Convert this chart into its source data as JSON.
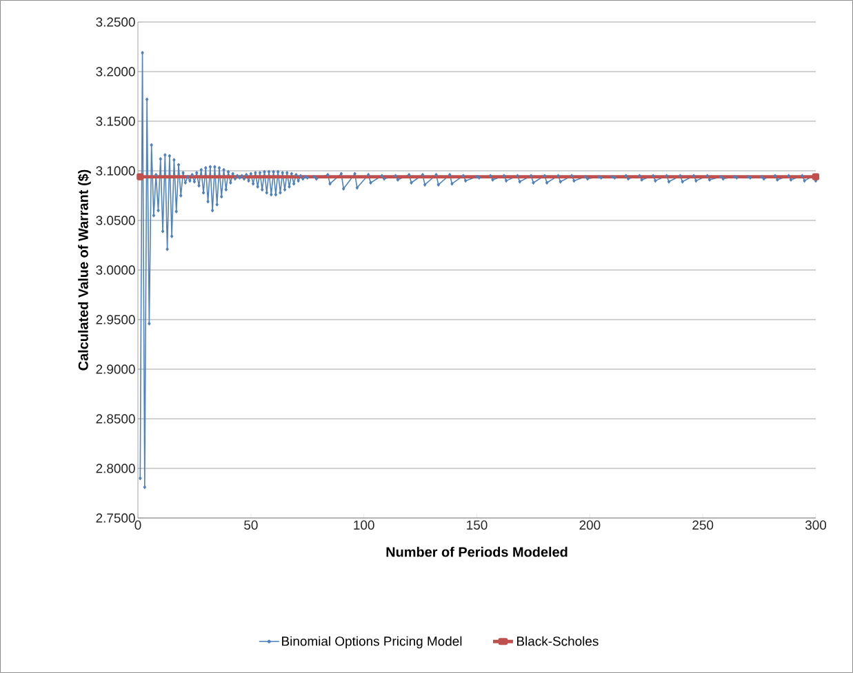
{
  "chart_data": {
    "type": "line",
    "xlabel": "Number of Periods Modeled",
    "ylabel": "Calculated Value of Warrant ($)",
    "xlim": [
      0,
      300
    ],
    "xticks": [
      0,
      50,
      100,
      150,
      200,
      250,
      300
    ],
    "ylim": [
      2.75,
      3.25
    ],
    "yticks": [
      {
        "value": 2.75,
        "label": "2.7500"
      },
      {
        "value": 2.8,
        "label": "2.8000"
      },
      {
        "value": 2.85,
        "label": "2.8500"
      },
      {
        "value": 2.9,
        "label": "2.9000"
      },
      {
        "value": 2.95,
        "label": "2.9500"
      },
      {
        "value": 3.0,
        "label": "3.0000"
      },
      {
        "value": 3.05,
        "label": "3.0500"
      },
      {
        "value": 3.1,
        "label": "3.1000"
      },
      {
        "value": 3.15,
        "label": "3.1500"
      },
      {
        "value": 3.2,
        "label": "3.2000"
      },
      {
        "value": 3.25,
        "label": "3.2500"
      }
    ],
    "grid": "y",
    "legend": "bottom",
    "series": [
      {
        "name": "Binomial Options Pricing Model",
        "color": "#4f81bd",
        "marker": "diamond",
        "x": [
          1,
          2,
          3,
          4,
          5,
          6,
          7,
          8,
          9,
          10,
          11,
          12,
          13,
          14,
          15,
          16,
          17,
          18,
          19,
          20,
          21,
          22,
          23,
          24,
          25,
          26,
          27,
          28,
          29,
          30,
          31,
          32,
          33,
          34,
          35,
          36,
          37,
          38,
          39,
          40,
          41,
          42,
          43,
          44,
          45,
          46,
          47,
          48,
          49,
          50,
          51,
          52,
          53,
          54,
          55,
          56,
          57,
          58,
          59,
          60,
          61,
          62,
          63,
          64,
          65,
          66,
          67,
          68,
          69,
          70,
          71,
          72,
          73,
          74,
          75,
          78,
          79,
          84,
          85,
          90,
          91,
          96,
          97,
          102,
          103,
          108,
          109,
          114,
          115,
          120,
          121,
          126,
          127,
          132,
          133,
          138,
          139,
          144,
          145,
          150,
          151,
          156,
          157,
          162,
          163,
          168,
          169,
          174,
          175,
          180,
          181,
          186,
          187,
          192,
          193,
          198,
          199,
          204,
          205,
          210,
          211,
          216,
          217,
          222,
          223,
          228,
          229,
          234,
          235,
          240,
          241,
          246,
          247,
          252,
          253,
          258,
          259,
          264,
          265,
          270,
          271,
          276,
          277,
          282,
          283,
          288,
          289,
          294,
          295,
          299,
          300
        ],
        "values": [
          2.79,
          3.219,
          2.781,
          3.172,
          2.946,
          3.126,
          3.055,
          3.096,
          3.06,
          3.112,
          3.039,
          3.116,
          3.021,
          3.115,
          3.034,
          3.111,
          3.059,
          3.106,
          3.075,
          3.098,
          3.088,
          3.094,
          3.09,
          3.096,
          3.089,
          3.098,
          3.085,
          3.101,
          3.078,
          3.103,
          3.069,
          3.104,
          3.06,
          3.104,
          3.066,
          3.103,
          3.074,
          3.101,
          3.081,
          3.099,
          3.088,
          3.097,
          3.092,
          3.095,
          3.093,
          3.095,
          3.092,
          3.096,
          3.09,
          3.097,
          3.087,
          3.098,
          3.084,
          3.098,
          3.081,
          3.099,
          3.078,
          3.099,
          3.076,
          3.099,
          3.076,
          3.099,
          3.078,
          3.098,
          3.081,
          3.098,
          3.084,
          3.097,
          3.087,
          3.096,
          3.09,
          3.095,
          3.092,
          3.094,
          3.093,
          3.094,
          3.092,
          3.096,
          3.087,
          3.097,
          3.082,
          3.097,
          3.083,
          3.096,
          3.088,
          3.095,
          3.092,
          3.095,
          3.091,
          3.096,
          3.088,
          3.096,
          3.086,
          3.096,
          3.086,
          3.096,
          3.087,
          3.095,
          3.09,
          3.094,
          3.093,
          3.095,
          3.091,
          3.095,
          3.09,
          3.095,
          3.089,
          3.095,
          3.088,
          3.095,
          3.088,
          3.095,
          3.089,
          3.095,
          3.09,
          3.094,
          3.092,
          3.094,
          3.093,
          3.094,
          3.093,
          3.095,
          3.092,
          3.095,
          3.091,
          3.095,
          3.09,
          3.095,
          3.089,
          3.095,
          3.089,
          3.095,
          3.09,
          3.095,
          3.091,
          3.094,
          3.092,
          3.094,
          3.093,
          3.094,
          3.093,
          3.094,
          3.092,
          3.095,
          3.091,
          3.095,
          3.091,
          3.095,
          3.09,
          3.095,
          3.09
        ]
      },
      {
        "name": "Black-Scholes",
        "color": "#c0504d",
        "marker": "square",
        "x": [
          1,
          300
        ],
        "values": [
          3.094,
          3.094
        ]
      }
    ]
  }
}
